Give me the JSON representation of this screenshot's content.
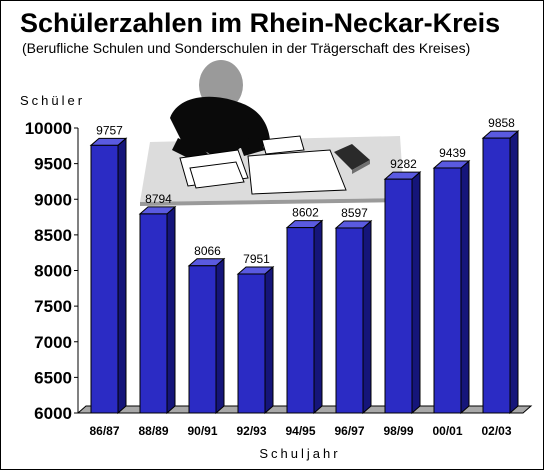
{
  "chart_data": {
    "type": "bar",
    "title": "Schülerzahlen im Rhein-Neckar-Kreis",
    "subtitle": "(Berufliche Schulen und Sonderschulen in der Trägerschaft des Kreises)",
    "ylabel": "Schüler",
    "xlabel": "Schuljahr",
    "categories": [
      "86/87",
      "88/89",
      "90/91",
      "92/93",
      "94/95",
      "96/97",
      "98/99",
      "00/01",
      "02/03"
    ],
    "values": [
      9757,
      8794,
      8066,
      7951,
      8602,
      8597,
      9282,
      9439,
      9858
    ],
    "ylim": [
      6000,
      10000
    ],
    "yticks": [
      "10000",
      "9500",
      "9000",
      "8500",
      "8000",
      "7500",
      "7000",
      "6500",
      "6000"
    ],
    "grid": false,
    "legend": "none",
    "bar_style": "3d",
    "colors": {
      "bar_front": "#2b2bc4",
      "bar_side": "#15157a",
      "bar_top": "#5a5ae0",
      "floor": "#a8a8a8"
    },
    "illustration": "person-reading-icon"
  }
}
